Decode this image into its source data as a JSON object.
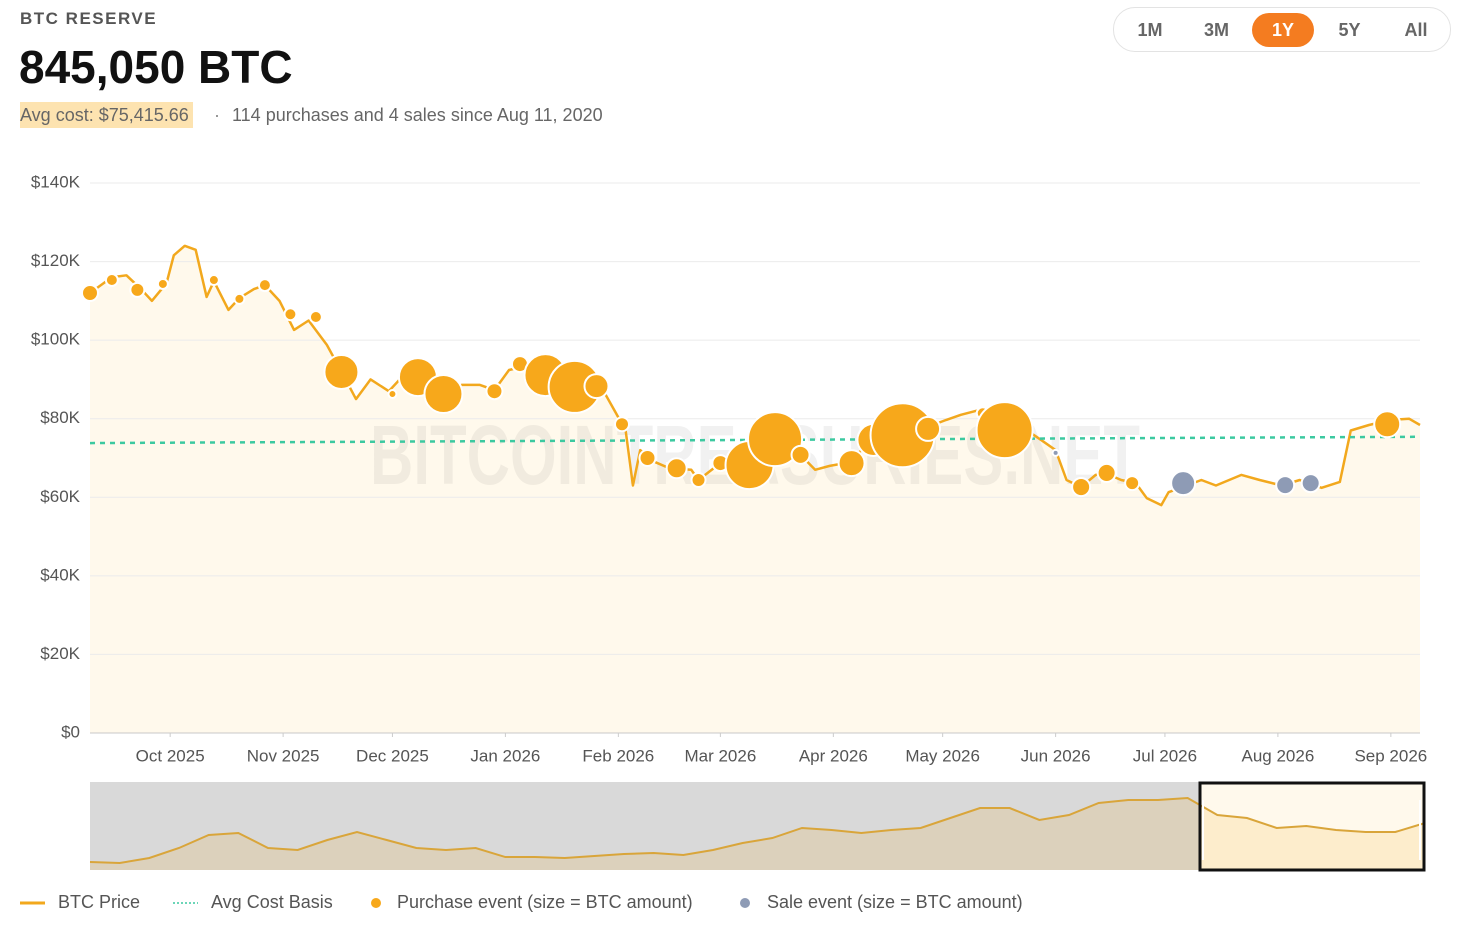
{
  "header": {
    "label": "BTC RESERVE",
    "amount": "845,050 BTC",
    "avg_cost": "Avg cost: $75,415.66",
    "separator": "·",
    "summary": "114 purchases and 4 sales since Aug 11, 2020"
  },
  "ranges": {
    "options": [
      "1M",
      "3M",
      "1Y",
      "5Y",
      "All"
    ],
    "active": "1Y"
  },
  "watermark": "BITCOINTREASURIES.NET",
  "chart_data": {
    "type": "line",
    "xlim": [
      0,
      365
    ],
    "xticks": [
      {
        "value": 22,
        "label": "Oct 2025"
      },
      {
        "value": 53,
        "label": "Nov 2025"
      },
      {
        "value": 83,
        "label": "Dec 2025"
      },
      {
        "value": 114,
        "label": "Jan 2026"
      },
      {
        "value": 145,
        "label": "Feb 2026"
      },
      {
        "value": 173,
        "label": "Mar 2026"
      },
      {
        "value": 204,
        "label": "Apr 2026"
      },
      {
        "value": 234,
        "label": "May 2026"
      },
      {
        "value": 265,
        "label": "Jun 2026"
      },
      {
        "value": 295,
        "label": "Jul 2026"
      },
      {
        "value": 326,
        "label": "Aug 2026"
      },
      {
        "value": 357,
        "label": "Sep 2026"
      }
    ],
    "ylim": [
      0,
      140000
    ],
    "yticks": [
      {
        "value": 0,
        "label": "$0"
      },
      {
        "value": 20000,
        "label": "$20K"
      },
      {
        "value": 40000,
        "label": "$40K"
      },
      {
        "value": 60000,
        "label": "$60K"
      },
      {
        "value": 80000,
        "label": "$80K"
      },
      {
        "value": 100000,
        "label": "$100K"
      },
      {
        "value": 120000,
        "label": "$120K"
      },
      {
        "value": 140000,
        "label": "$140K"
      }
    ],
    "grid": true,
    "series": [
      {
        "name": "BTC Price",
        "type": "line",
        "color": "#f2a81d",
        "area_color": "#fff9ec",
        "x": [
          0,
          6,
          10,
          14,
          17,
          21,
          23,
          26,
          29,
          32,
          34,
          38,
          41,
          45,
          48,
          52,
          56,
          60,
          65,
          69,
          73,
          77,
          82,
          86,
          91,
          96,
          102,
          107,
          111,
          115,
          121,
          126,
          133,
          140,
          144,
          147,
          149,
          151,
          155,
          159,
          165,
          167,
          172,
          176,
          180,
          184,
          188,
          192,
          195,
          199,
          203,
          209,
          214,
          218,
          224,
          229,
          235,
          239,
          244,
          250,
          255,
          261,
          265,
          268,
          272,
          276,
          279,
          283,
          287,
          290,
          294,
          296,
          301,
          305,
          309,
          316,
          321,
          327,
          332,
          338,
          343,
          346,
          351,
          357,
          362,
          365
        ],
        "values": [
          112000,
          116000,
          116500,
          113000,
          110000,
          114500,
          121600,
          124000,
          123000,
          111000,
          115000,
          107700,
          110700,
          113000,
          114000,
          110000,
          102600,
          105000,
          98800,
          92000,
          85000,
          90000,
          87000,
          91000,
          90400,
          86500,
          88600,
          88600,
          87300,
          92400,
          93700,
          91000,
          88600,
          88600,
          82000,
          77000,
          63000,
          72000,
          69000,
          67400,
          67000,
          64400,
          68000,
          69500,
          69500,
          72500,
          75000,
          74600,
          70800,
          67000,
          68000,
          69000,
          74600,
          77000,
          77600,
          77600,
          79700,
          81000,
          82200,
          77000,
          78400,
          74600,
          72000,
          64400,
          62600,
          65700,
          66000,
          64400,
          63600,
          59800,
          58000,
          61300,
          63000,
          64400,
          63000,
          65700,
          64400,
          63000,
          64400,
          62400,
          63900,
          77000,
          78400,
          79700,
          80000,
          78400
        ]
      },
      {
        "name": "Avg Cost Basis",
        "type": "dashed",
        "color": "#3cc9a0",
        "x": [
          0,
          365
        ],
        "values": [
          73800,
          75400
        ]
      },
      {
        "name": "Purchase event (size = BTC amount)",
        "type": "scatter",
        "color": "#f7a81b",
        "x": [
          0,
          6,
          13,
          20,
          34,
          41,
          48,
          55,
          62,
          69,
          83,
          90,
          97,
          111,
          118,
          125,
          133,
          139,
          146,
          153,
          161,
          167,
          173,
          181,
          188,
          195,
          209,
          215,
          223,
          230,
          245,
          251,
          272,
          279,
          286,
          356
        ],
        "values": [
          112000,
          115300,
          112800,
          114300,
          115300,
          110500,
          114000,
          106600,
          105900,
          91900,
          86300,
          90600,
          86300,
          87000,
          93900,
          91100,
          88100,
          88300,
          78600,
          70000,
          67400,
          64400,
          68700,
          68200,
          74800,
          70800,
          68700,
          74600,
          75800,
          77400,
          81400,
          77100,
          62600,
          66200,
          63600,
          78600
        ],
        "sizes": [
          1250,
          700,
          960,
          490,
          490,
          490,
          700,
          700,
          700,
          5660,
          310,
          7070,
          7070,
          1250,
          1250,
          8640,
          13250,
          2820,
          960,
          1250,
          1960,
          960,
          1250,
          11290,
          14290,
          1590,
          3310,
          5020,
          20070,
          2820,
          700,
          15370,
          1590,
          1590,
          960,
          3310
        ]
      },
      {
        "name": "Sale event (size = BTC amount)",
        "type": "scatter",
        "color": "#8e9bb5",
        "x": [
          265,
          300,
          328,
          335
        ],
        "values": [
          71300,
          63600,
          63100,
          63600
        ],
        "sizes": [
          180,
          2820,
          1590,
          1590
        ]
      }
    ],
    "navigator": {
      "ylim": [
        10000,
        130000
      ],
      "color": "#d9a53a",
      "values": [
        20900,
        19500,
        26400,
        40000,
        57700,
        60500,
        40000,
        37300,
        50900,
        61800,
        50900,
        40000,
        37300,
        40000,
        27700,
        27700,
        26400,
        29100,
        31800,
        33200,
        30500,
        37300,
        46800,
        53600,
        67300,
        64500,
        60500,
        64500,
        67300,
        80900,
        94500,
        94500,
        78200,
        85000,
        101400,
        105500,
        105500,
        108200,
        85000,
        80900,
        67300,
        70000,
        64500,
        61800,
        61800,
        74100
      ]
    }
  }
}
